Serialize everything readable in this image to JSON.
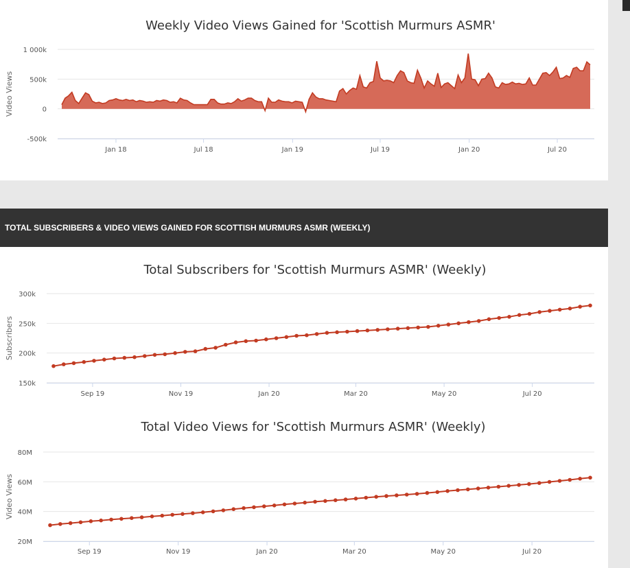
{
  "colors": {
    "series": "#c23b22",
    "area_fill": "#d66a58",
    "header_bg": "#333333"
  },
  "section_header": "TOTAL SUBSCRIBERS & VIDEO VIEWS GAINED FOR SCOTTISH MURMURS ASMR (WEEKLY)",
  "chart_data": [
    {
      "type": "area",
      "title": "Weekly Video Views Gained for 'Scottish Murmurs ASMR'",
      "ylabel": "Video Views",
      "xlabel": "",
      "x_start": "2017-09-11",
      "x_step_days": 7,
      "ylim": [
        -500000,
        1000000
      ],
      "y_ticks": [
        {
          "v": 1000000,
          "label": "1 000k"
        },
        {
          "v": 500000,
          "label": "500k"
        },
        {
          "v": 0,
          "label": "0"
        },
        {
          "v": -500000,
          "label": "-500k"
        }
      ],
      "x_ticks": [
        {
          "date": "2018-01-01",
          "label": "Jan 18"
        },
        {
          "date": "2018-07-01",
          "label": "Jul 18"
        },
        {
          "date": "2019-01-01",
          "label": "Jan 19"
        },
        {
          "date": "2019-07-01",
          "label": "Jul 19"
        },
        {
          "date": "2020-01-01",
          "label": "Jan 20"
        },
        {
          "date": "2020-07-01",
          "label": "Jul 20"
        }
      ],
      "grid": true,
      "values": [
        70000,
        180000,
        220000,
        280000,
        140000,
        90000,
        180000,
        270000,
        240000,
        130000,
        100000,
        110000,
        90000,
        100000,
        140000,
        150000,
        170000,
        150000,
        140000,
        160000,
        140000,
        150000,
        120000,
        140000,
        130000,
        110000,
        120000,
        110000,
        140000,
        130000,
        150000,
        140000,
        110000,
        120000,
        100000,
        180000,
        150000,
        140000,
        100000,
        70000,
        70000,
        70000,
        70000,
        70000,
        160000,
        160000,
        100000,
        80000,
        80000,
        100000,
        90000,
        120000,
        170000,
        130000,
        150000,
        180000,
        180000,
        140000,
        120000,
        120000,
        -30000,
        180000,
        110000,
        110000,
        150000,
        130000,
        120000,
        120000,
        100000,
        130000,
        120000,
        110000,
        -50000,
        160000,
        270000,
        200000,
        170000,
        170000,
        150000,
        140000,
        130000,
        120000,
        300000,
        340000,
        250000,
        310000,
        350000,
        330000,
        560000,
        370000,
        350000,
        440000,
        460000,
        800000,
        520000,
        470000,
        480000,
        470000,
        440000,
        560000,
        640000,
        610000,
        470000,
        440000,
        430000,
        650000,
        520000,
        350000,
        470000,
        420000,
        380000,
        600000,
        360000,
        420000,
        440000,
        390000,
        340000,
        570000,
        440000,
        520000,
        930000,
        500000,
        490000,
        390000,
        500000,
        510000,
        600000,
        520000,
        370000,
        350000,
        440000,
        410000,
        420000,
        450000,
        420000,
        430000,
        410000,
        420000,
        520000,
        400000,
        400000,
        500000,
        600000,
        610000,
        560000,
        620000,
        700000,
        510000,
        520000,
        560000,
        530000,
        680000,
        700000,
        640000,
        640000,
        790000,
        740000
      ]
    },
    {
      "type": "line",
      "title": "Total Subscribers for 'Scottish Murmurs ASMR' (Weekly)",
      "ylabel": "Subscribers",
      "xlabel": "",
      "x_start": "2019-08-05",
      "x_step_days": 7,
      "ylim": [
        150000,
        300000
      ],
      "y_ticks": [
        {
          "v": 300000,
          "label": "300k"
        },
        {
          "v": 250000,
          "label": "250k"
        },
        {
          "v": 200000,
          "label": "200k"
        },
        {
          "v": 150000,
          "label": "150k"
        }
      ],
      "x_ticks": [
        {
          "date": "2019-09-01",
          "label": "Sep 19"
        },
        {
          "date": "2019-11-01",
          "label": "Nov 19"
        },
        {
          "date": "2020-01-01",
          "label": "Jan 20"
        },
        {
          "date": "2020-03-01",
          "label": "Mar 20"
        },
        {
          "date": "2020-05-01",
          "label": "May 20"
        },
        {
          "date": "2020-07-01",
          "label": "Jul 20"
        }
      ],
      "grid": true,
      "values": [
        178000,
        181000,
        183000,
        185000,
        187000,
        189000,
        191000,
        192000,
        193000,
        195000,
        197000,
        198000,
        200000,
        202000,
        203000,
        207000,
        209000,
        214000,
        218000,
        220000,
        221000,
        223000,
        225000,
        227000,
        229000,
        230000,
        232000,
        234000,
        235000,
        236000,
        237000,
        238000,
        239000,
        240000,
        241000,
        242000,
        243000,
        244000,
        246000,
        248000,
        250000,
        252000,
        254000,
        257000,
        259000,
        261000,
        264000,
        266000,
        269000,
        271000,
        273000,
        275000,
        278000,
        280000
      ]
    },
    {
      "type": "line",
      "title": "Total Video Views for 'Scottish Murmurs ASMR' (Weekly)",
      "ylabel": "Video Views",
      "xlabel": "",
      "x_start": "2019-08-05",
      "x_step_days": 7,
      "ylim": [
        20000000,
        80000000
      ],
      "y_ticks": [
        {
          "v": 80000000,
          "label": "80M"
        },
        {
          "v": 60000000,
          "label": "60M"
        },
        {
          "v": 40000000,
          "label": "40M"
        },
        {
          "v": 20000000,
          "label": "20M"
        }
      ],
      "x_ticks": [
        {
          "date": "2019-09-01",
          "label": "Sep 19"
        },
        {
          "date": "2019-11-01",
          "label": "Nov 19"
        },
        {
          "date": "2020-01-01",
          "label": "Jan 20"
        },
        {
          "date": "2020-03-01",
          "label": "Mar 20"
        },
        {
          "date": "2020-05-01",
          "label": "May 20"
        },
        {
          "date": "2020-07-01",
          "label": "Jul 20"
        }
      ],
      "grid": true,
      "values": [
        30800000,
        31600000,
        32200000,
        32800000,
        33500000,
        34000000,
        34600000,
        35100000,
        35600000,
        36100000,
        36700000,
        37200000,
        37800000,
        38300000,
        38900000,
        39500000,
        40100000,
        40800000,
        41600000,
        42300000,
        42900000,
        43500000,
        44100000,
        44800000,
        45400000,
        46000000,
        46600000,
        47100000,
        47600000,
        48100000,
        48700000,
        49300000,
        49900000,
        50400000,
        50900000,
        51400000,
        51900000,
        52500000,
        53100000,
        53800000,
        54400000,
        54900000,
        55500000,
        56100000,
        56700000,
        57300000,
        57900000,
        58500000,
        59200000,
        59900000,
        60600000,
        61300000,
        62100000,
        62800000
      ]
    }
  ]
}
